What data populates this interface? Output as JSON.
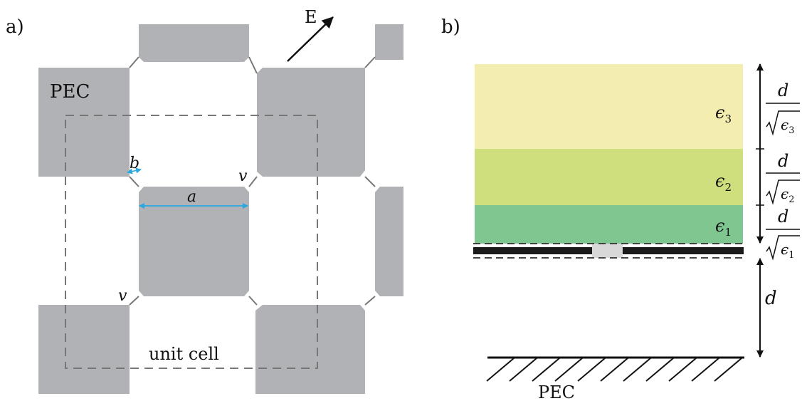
{
  "panel_a": {
    "label": "a)",
    "pec_label": "PEC",
    "field_label": "E",
    "gap_label": "b",
    "width_label": "a",
    "via_label_1": "v",
    "via_label_2": "v",
    "cell_label": "unit cell"
  },
  "panel_b": {
    "label": "b)",
    "layers": [
      {
        "eps": "ϵ",
        "sub": "3",
        "color": "#f3eeb0"
      },
      {
        "eps": "ϵ",
        "sub": "2",
        "color": "#d0df7e"
      },
      {
        "eps": "ϵ",
        "sub": "1",
        "color": "#7fc690"
      }
    ],
    "dims": [
      {
        "num": "d",
        "den_eps": "ϵ",
        "den_sub": "3"
      },
      {
        "num": "d",
        "den_eps": "ϵ",
        "den_sub": "2"
      },
      {
        "num": "d",
        "den_eps": "ϵ",
        "den_sub": "1"
      }
    ],
    "gap_dim": "d",
    "ground_label": "PEC"
  },
  "colors": {
    "pec": "#b1b2b5",
    "gap_line": "#777777",
    "dashed": "#777777",
    "arrow_blue": "#2aa8e0",
    "metal": "#1b1b1b",
    "slot": "#d8d8d8"
  }
}
